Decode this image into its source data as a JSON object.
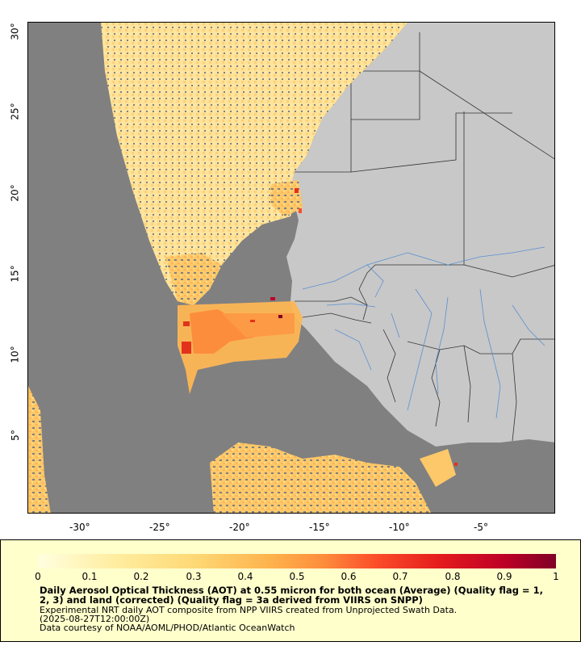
{
  "map": {
    "lon_ticks": [
      "-30°",
      "-25°",
      "-20°",
      "-15°",
      "-10°",
      "-5°"
    ],
    "lat_ticks": [
      "30°",
      "25°",
      "20°",
      "15°",
      "10°",
      "5°"
    ],
    "lon_range": [
      -33.3,
      0.4
    ],
    "lat_range": [
      0.0,
      30.5
    ],
    "colors": {
      "ocean_no_data": "#808080",
      "land": "#c8c8c8",
      "borders": "#333333",
      "rivers": "#5a8fd0",
      "frame_background": "#ffffff"
    }
  },
  "legend": {
    "colorbar_ticks": [
      "0",
      "0.1",
      "0.2",
      "0.3",
      "0.4",
      "0.5",
      "0.6",
      "0.7",
      "0.8",
      "0.9",
      "1"
    ],
    "colorbar_range": [
      0,
      1
    ],
    "colorbar_colors": [
      "#ffffe0",
      "#ffeda0",
      "#fed976",
      "#feb24c",
      "#fd8d3c",
      "#fc4e2a",
      "#e31a1c",
      "#bd0026",
      "#800026"
    ],
    "title": "Daily Aerosol Optical Thickness (AOT) at 0.55 micron for both ocean (Average) (Quality flag = 1, 2, 3) and land (corrected) (Quality flag = 3a derived from VIIRS on SNPP)",
    "note1": "Experimental NRT daily AOT composite from NPP VIIRS created from Unprojected Swath Data.",
    "note2": "(2025-08-27T12:00:00Z)",
    "note3": "Data courtesy of NOAA/AOML/PHOD/Atlantic OceanWatch",
    "background_color": "#ffffcc"
  }
}
